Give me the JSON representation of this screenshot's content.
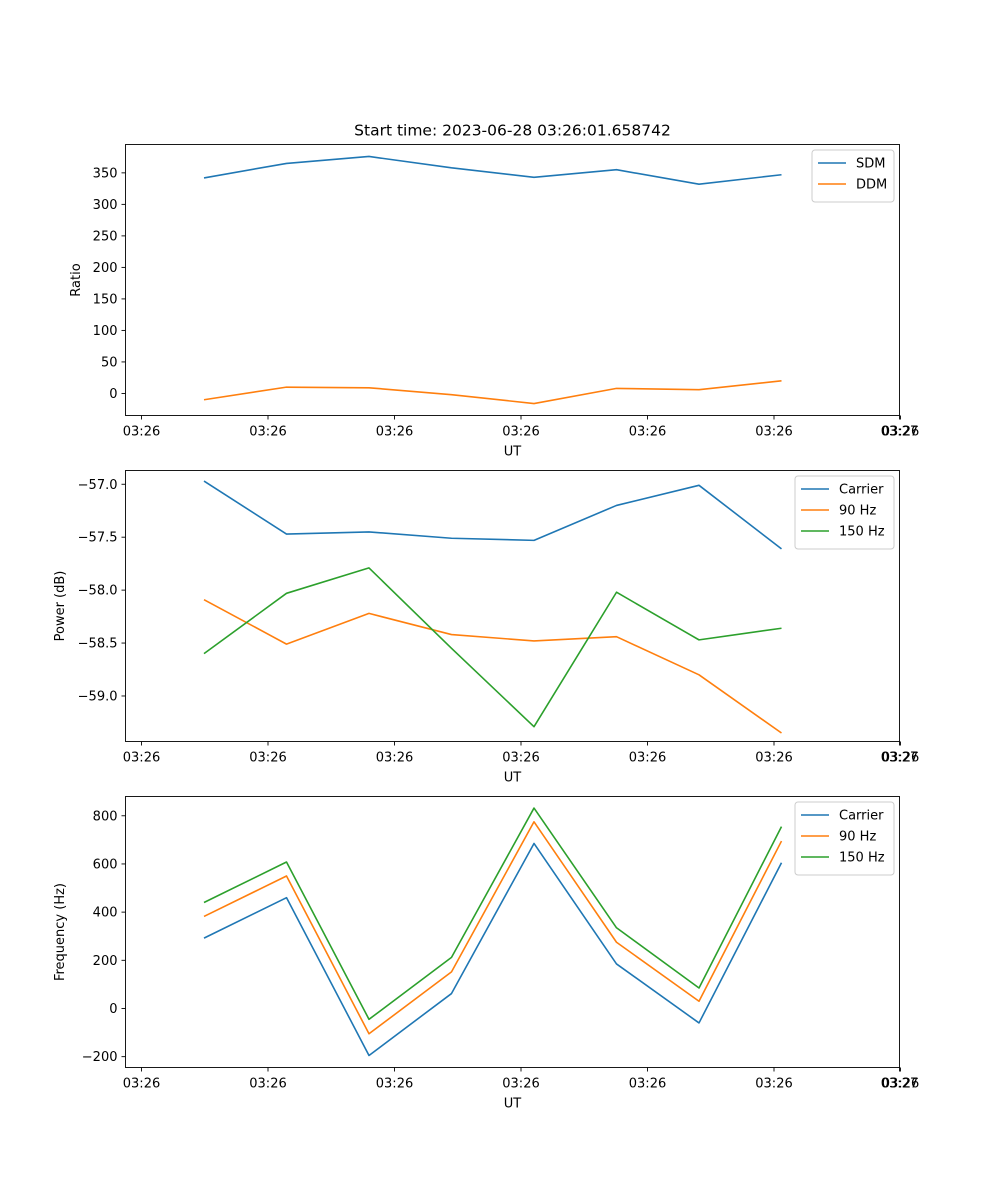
{
  "title": "Start time: 2023-06-28 03:26:01.658742",
  "chart_data": [
    {
      "type": "line",
      "xlabel": "UT",
      "ylabel": "Ratio",
      "x_tick_labels": [
        "03:26",
        "03:26",
        "03:26",
        "03:26",
        "03:26",
        "03:26",
        "03:26"
      ],
      "x_tick_labels_end": "03:27",
      "y_ticks": [
        0,
        50,
        100,
        150,
        200,
        250,
        300,
        350
      ],
      "ylim": [
        -35,
        395
      ],
      "legend_position": "top-right",
      "series": [
        {
          "name": "SDM",
          "color": "#1f77b4",
          "values": [
            342,
            365,
            376,
            358,
            343,
            355,
            332,
            347
          ]
        },
        {
          "name": "DDM",
          "color": "#ff7f0e",
          "values": [
            -10,
            10,
            9,
            -2,
            -16,
            8,
            6,
            20
          ]
        }
      ]
    },
    {
      "type": "line",
      "xlabel": "UT",
      "ylabel": "Power (dB)",
      "x_tick_labels": [
        "03:26",
        "03:26",
        "03:26",
        "03:26",
        "03:26",
        "03:26",
        "03:26"
      ],
      "x_tick_labels_end": "03:27",
      "y_ticks": [
        -59.0,
        -58.5,
        -58.0,
        -57.5,
        -57.0
      ],
      "y_tick_labels": [
        "−59.0",
        "−58.5",
        "−58.0",
        "−57.5",
        "−57.0"
      ],
      "ylim": [
        -59.43,
        -56.87
      ],
      "legend_position": "top-right",
      "series": [
        {
          "name": "Carrier",
          "color": "#1f77b4",
          "values": [
            -56.97,
            -57.47,
            -57.45,
            -57.51,
            -57.53,
            -57.2,
            -57.01,
            -57.61
          ]
        },
        {
          "name": "90 Hz",
          "color": "#ff7f0e",
          "values": [
            -58.09,
            -58.51,
            -58.22,
            -58.42,
            -58.48,
            -58.44,
            -58.8,
            -59.35
          ]
        },
        {
          "name": "150 Hz",
          "color": "#2ca02c",
          "values": [
            -58.6,
            -58.03,
            -57.79,
            -58.55,
            -59.29,
            -58.02,
            -58.47,
            -58.36
          ]
        }
      ]
    },
    {
      "type": "line",
      "xlabel": "UT",
      "ylabel": "Frequency (Hz)",
      "x_tick_labels": [
        "03:26",
        "03:26",
        "03:26",
        "03:26",
        "03:26",
        "03:26",
        "03:26"
      ],
      "x_tick_labels_end": "03:27",
      "y_ticks": [
        -200,
        0,
        200,
        400,
        600,
        800
      ],
      "y_tick_labels": [
        "−200",
        "0",
        "200",
        "400",
        "600",
        "800"
      ],
      "ylim": [
        -245,
        880
      ],
      "legend_position": "top-right",
      "series": [
        {
          "name": "Carrier",
          "color": "#1f77b4",
          "values": [
            292,
            460,
            -195,
            62,
            685,
            185,
            -60,
            605
          ]
        },
        {
          "name": "90 Hz",
          "color": "#ff7f0e",
          "values": [
            382,
            550,
            -105,
            152,
            775,
            275,
            30,
            695
          ]
        },
        {
          "name": "150 Hz",
          "color": "#2ca02c",
          "values": [
            440,
            608,
            -45,
            212,
            832,
            335,
            85,
            755
          ]
        }
      ]
    }
  ]
}
